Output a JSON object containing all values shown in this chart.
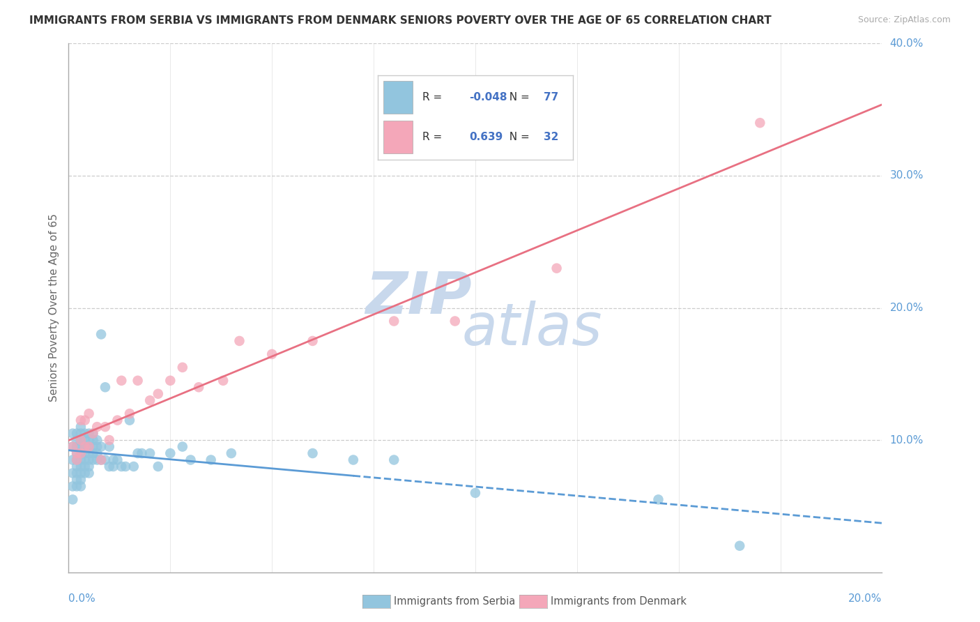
{
  "title": "IMMIGRANTS FROM SERBIA VS IMMIGRANTS FROM DENMARK SENIORS POVERTY OVER THE AGE OF 65 CORRELATION CHART",
  "source": "Source: ZipAtlas.com",
  "ylabel": "Seniors Poverty Over the Age of 65",
  "xlabel_serbia": "Immigrants from Serbia",
  "xlabel_denmark": "Immigrants from Denmark",
  "xlim": [
    0.0,
    0.2
  ],
  "ylim": [
    0.0,
    0.4
  ],
  "xtick_left_label": "0.0%",
  "xtick_right_label": "20.0%",
  "ytick_labels": [
    "10.0%",
    "20.0%",
    "30.0%",
    "40.0%"
  ],
  "ytick_values": [
    0.1,
    0.2,
    0.3,
    0.4
  ],
  "serbia_R": -0.048,
  "serbia_N": 77,
  "denmark_R": 0.639,
  "denmark_N": 32,
  "serbia_color": "#92C5DE",
  "denmark_color": "#F4A7B9",
  "serbia_line_color": "#5B9BD5",
  "denmark_line_color": "#E87082",
  "watermark_top": "ZIP",
  "watermark_bot": "atlas",
  "watermark_color": "#C8D8EC",
  "serbia_x": [
    0.001,
    0.001,
    0.001,
    0.001,
    0.001,
    0.001,
    0.002,
    0.002,
    0.002,
    0.002,
    0.002,
    0.002,
    0.002,
    0.002,
    0.002,
    0.003,
    0.003,
    0.003,
    0.003,
    0.003,
    0.003,
    0.003,
    0.003,
    0.003,
    0.003,
    0.004,
    0.004,
    0.004,
    0.004,
    0.004,
    0.004,
    0.004,
    0.005,
    0.005,
    0.005,
    0.005,
    0.005,
    0.005,
    0.005,
    0.006,
    0.006,
    0.006,
    0.006,
    0.006,
    0.007,
    0.007,
    0.007,
    0.007,
    0.008,
    0.008,
    0.008,
    0.009,
    0.009,
    0.01,
    0.01,
    0.011,
    0.011,
    0.012,
    0.013,
    0.014,
    0.015,
    0.016,
    0.017,
    0.018,
    0.02,
    0.022,
    0.025,
    0.028,
    0.03,
    0.035,
    0.04,
    0.06,
    0.07,
    0.08,
    0.1,
    0.145,
    0.165
  ],
  "serbia_y": [
    0.105,
    0.095,
    0.085,
    0.075,
    0.065,
    0.055,
    0.105,
    0.1,
    0.095,
    0.09,
    0.085,
    0.08,
    0.075,
    0.07,
    0.065,
    0.11,
    0.105,
    0.1,
    0.095,
    0.09,
    0.085,
    0.08,
    0.075,
    0.07,
    0.065,
    0.105,
    0.1,
    0.095,
    0.09,
    0.085,
    0.08,
    0.075,
    0.105,
    0.1,
    0.095,
    0.09,
    0.085,
    0.08,
    0.075,
    0.105,
    0.1,
    0.095,
    0.09,
    0.085,
    0.1,
    0.095,
    0.09,
    0.085,
    0.18,
    0.095,
    0.085,
    0.14,
    0.085,
    0.095,
    0.08,
    0.085,
    0.08,
    0.085,
    0.08,
    0.08,
    0.115,
    0.08,
    0.09,
    0.09,
    0.09,
    0.08,
    0.09,
    0.095,
    0.085,
    0.085,
    0.09,
    0.09,
    0.085,
    0.085,
    0.06,
    0.055,
    0.02
  ],
  "denmark_x": [
    0.001,
    0.002,
    0.002,
    0.003,
    0.003,
    0.003,
    0.004,
    0.004,
    0.005,
    0.005,
    0.006,
    0.007,
    0.008,
    0.009,
    0.01,
    0.012,
    0.013,
    0.015,
    0.017,
    0.02,
    0.022,
    0.025,
    0.028,
    0.032,
    0.038,
    0.042,
    0.05,
    0.06,
    0.08,
    0.095,
    0.12,
    0.17
  ],
  "denmark_y": [
    0.095,
    0.09,
    0.085,
    0.115,
    0.1,
    0.09,
    0.115,
    0.095,
    0.12,
    0.095,
    0.105,
    0.11,
    0.085,
    0.11,
    0.1,
    0.115,
    0.145,
    0.12,
    0.145,
    0.13,
    0.135,
    0.145,
    0.155,
    0.14,
    0.145,
    0.175,
    0.165,
    0.175,
    0.19,
    0.19,
    0.23,
    0.34
  ]
}
